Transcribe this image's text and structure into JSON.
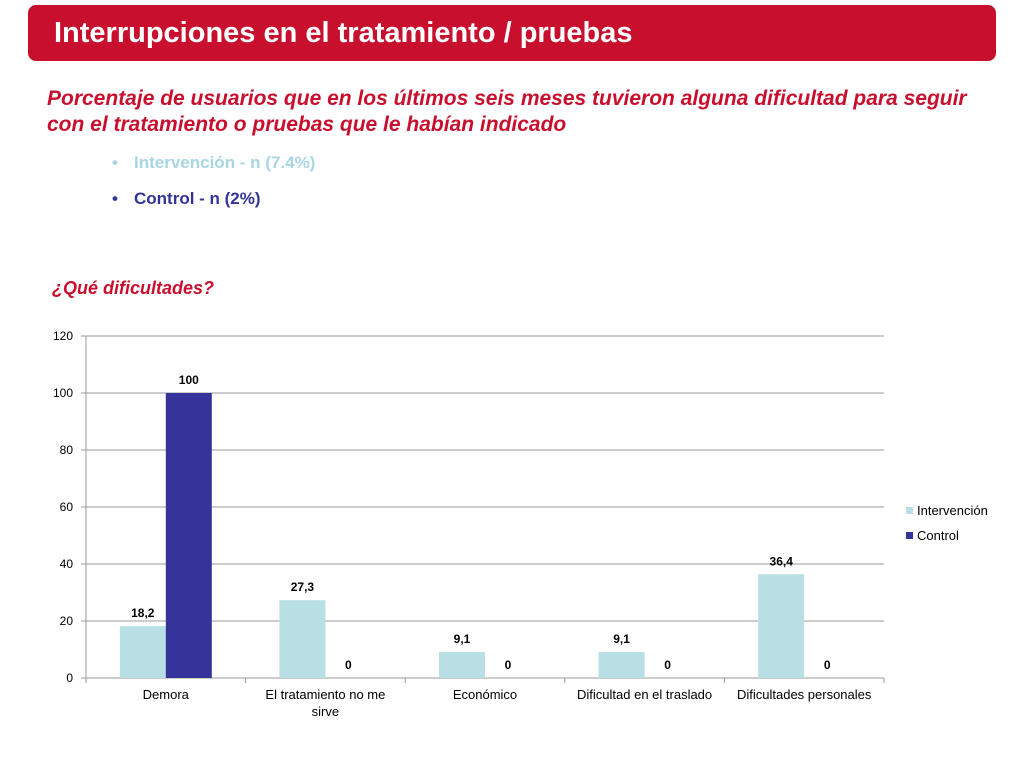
{
  "header": {
    "title": "Interrupciones en el tratamiento / pruebas"
  },
  "subtitle": "Porcentaje de usuarios que en los últimos seis meses tuvieron alguna dificultad para seguir con el tratamiento o pruebas que le habían indicado",
  "bullets": [
    {
      "text": "Intervención - n (7.4%)",
      "color": "#a8d5e2"
    },
    {
      "text": "Control - n (2%)",
      "color": "#333399"
    }
  ],
  "question": "¿Qué dificultades?",
  "colors": {
    "accent": "#c8102e",
    "intervencion": "#b8e0e4",
    "control": "#333399"
  },
  "chart_data": {
    "type": "bar",
    "categories": [
      "Demora",
      "El tratamiento no me sirve",
      "Económico",
      "Dificultad en el traslado",
      "Dificultades personales"
    ],
    "category_lines": [
      [
        "Demora"
      ],
      [
        "El tratamiento no me",
        "sirve"
      ],
      [
        "Económico"
      ],
      [
        "Dificultad en el traslado"
      ],
      [
        "Dificultades personales"
      ]
    ],
    "series": [
      {
        "name": "Intervención",
        "values": [
          18.2,
          27.3,
          9.1,
          9.1,
          36.4
        ],
        "labels": [
          "18,2",
          "27,3",
          "9,1",
          "9,1",
          "36,4"
        ],
        "color": "#b8e0e4"
      },
      {
        "name": "Control",
        "values": [
          100,
          0,
          0,
          0,
          0
        ],
        "labels": [
          "100",
          "0",
          "0",
          "0",
          "0"
        ],
        "color": "#333399"
      }
    ],
    "ylim": [
      0,
      120
    ],
    "yticks": [
      0,
      20,
      40,
      60,
      80,
      100,
      120
    ],
    "grid": true,
    "legend": "right"
  }
}
